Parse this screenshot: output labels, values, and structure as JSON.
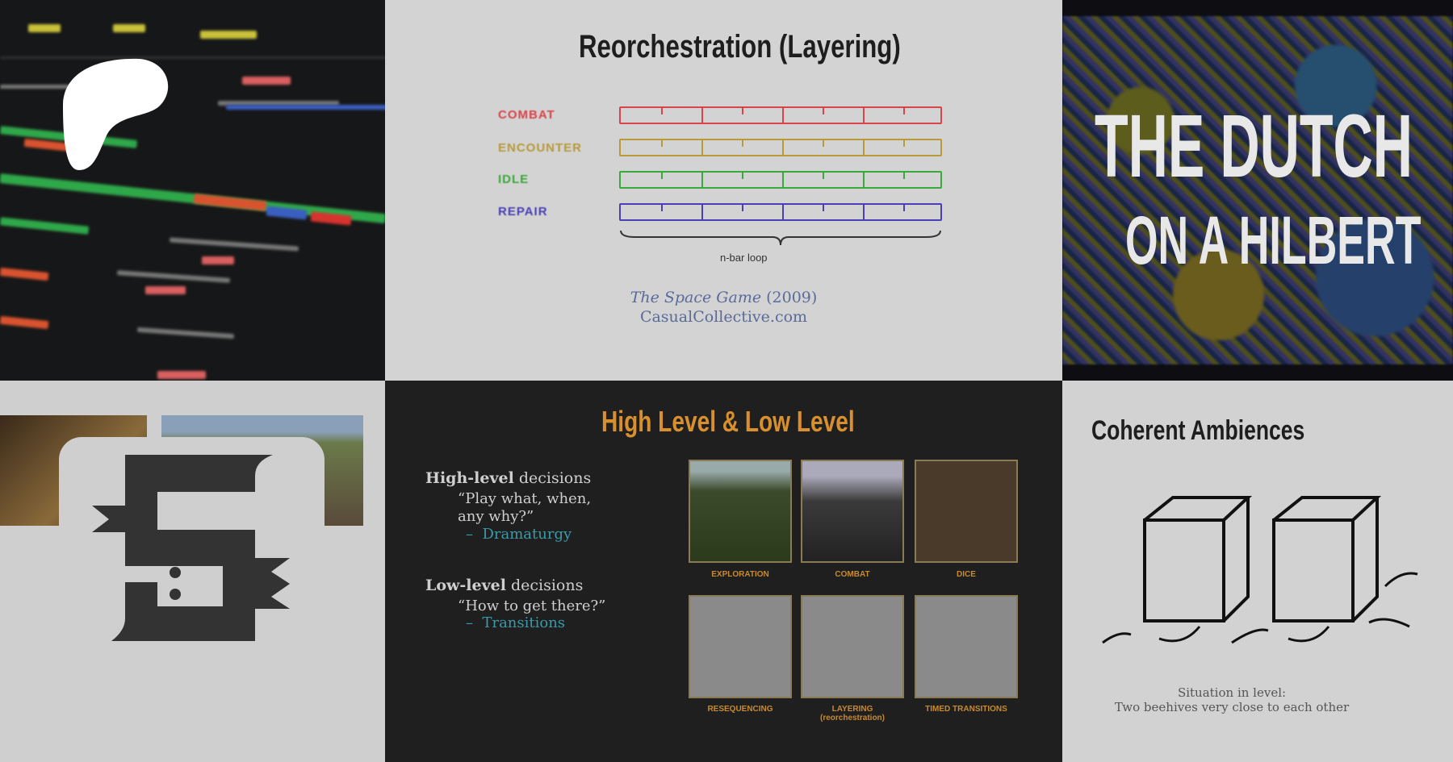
{
  "tiles": {
    "daw": {
      "labels": []
    },
    "reorchestration": {
      "title": "Reorchestration (Layering)",
      "lanes": [
        {
          "label": "COMBAT",
          "color": "#d9444a"
        },
        {
          "label": "ENCOUNTER",
          "color": "#b89a3a"
        },
        {
          "label": "IDLE",
          "color": "#3aa83a"
        },
        {
          "label": "REPAIR",
          "color": "#4a3fb5"
        }
      ],
      "brace_label": "n-bar loop",
      "credit_title": "The Space Game",
      "credit_year": "(2009)",
      "credit_site": "CasualCollective.com"
    },
    "dutch": {
      "line1": "THE DUTCH",
      "line2": "ON A HILBERT"
    },
    "high_low": {
      "title": "High Level & Low Level",
      "high_heading_bold": "High-level",
      "high_heading_rest": " decisions",
      "high_bullet": "“Play what, when, any why?”",
      "high_sub": "Dramaturgy",
      "low_heading_bold": "Low-level",
      "low_heading_rest": " decisions",
      "low_bullet": "“How to get there?”",
      "low_sub": "Transitions",
      "captions": [
        "EXPLORATION",
        "COMBAT",
        "DICE",
        "RESEQUENCING",
        "LAYERING (reorchestration)",
        "TIMED TRANSITIONS"
      ],
      "title_color": "#d8902e",
      "accent_color": "#3b9aa8"
    },
    "ambiences": {
      "title": "Coherent Ambiences",
      "caption_line1": "Situation in level:",
      "caption_line2": "Two beehives very close to each other"
    }
  },
  "logos": {
    "patreon": "patreon-logo",
    "site": "5-logo"
  }
}
